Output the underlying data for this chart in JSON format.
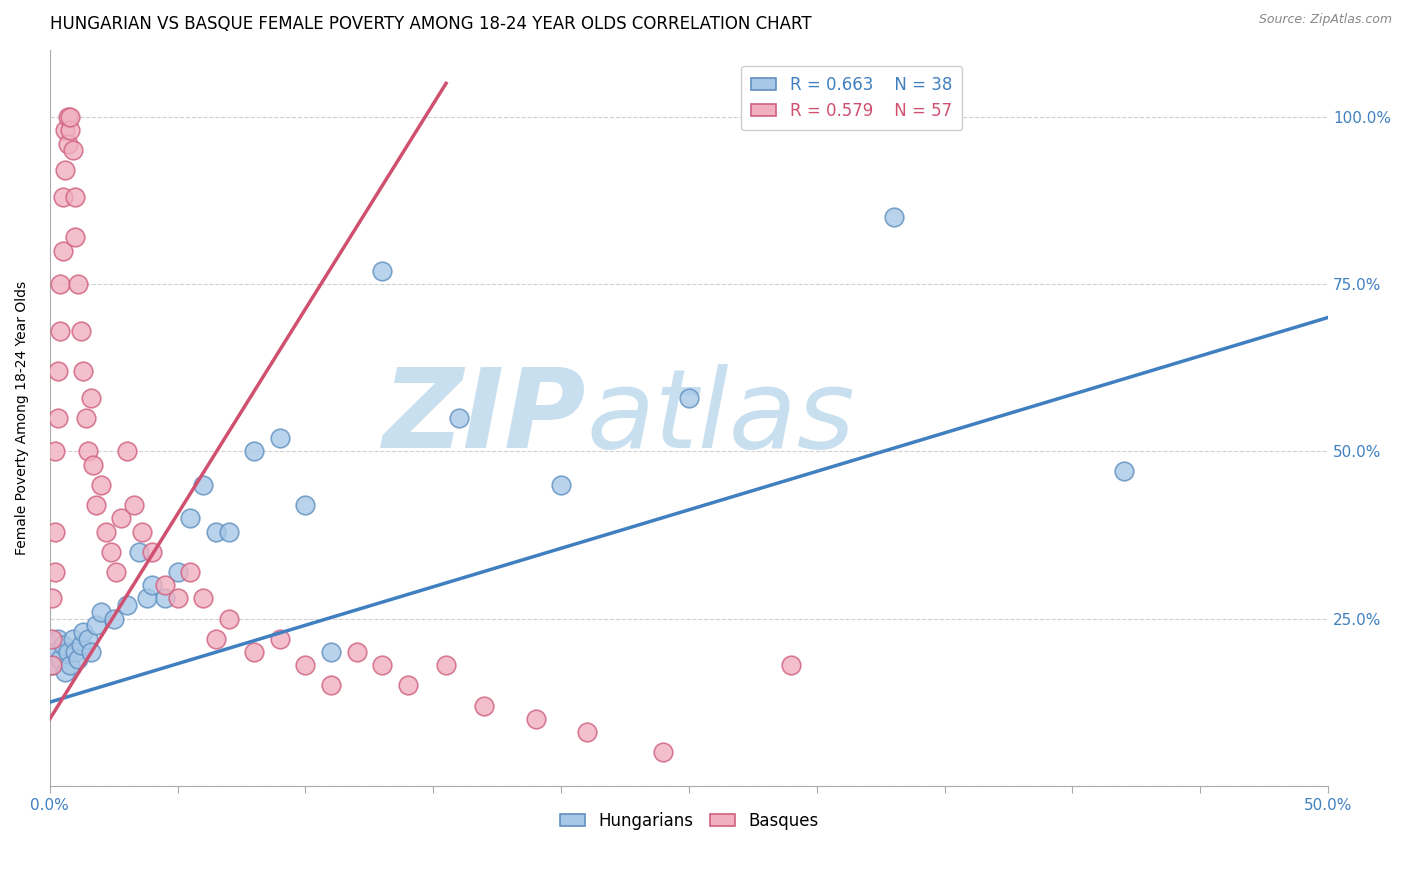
{
  "title": "HUNGARIAN VS BASQUE FEMALE POVERTY AMONG 18-24 YEAR OLDS CORRELATION CHART",
  "source": "Source: ZipAtlas.com",
  "ylabel": "Female Poverty Among 18-24 Year Olds",
  "xlim": [
    0.0,
    0.5
  ],
  "ylim": [
    0.0,
    1.1
  ],
  "blue_R": 0.663,
  "blue_N": 38,
  "pink_R": 0.579,
  "pink_N": 57,
  "blue_color": "#a8c8e8",
  "pink_color": "#f0b0c0",
  "blue_edge_color": "#6090c0",
  "pink_edge_color": "#d06080",
  "blue_line_color": "#4080c0",
  "pink_line_color": "#d05070",
  "watermark_zip": "ZIP",
  "watermark_atlas": "atlas",
  "watermark_color": "#c8dff0",
  "background_color": "#ffffff",
  "title_fontsize": 12,
  "axis_label_fontsize": 10,
  "tick_fontsize": 11,
  "legend_fontsize": 12,
  "blue_line_x0": 0.0,
  "blue_line_y0": 0.125,
  "blue_line_x1": 0.5,
  "blue_line_y1": 0.7,
  "pink_line_x0": 0.0,
  "pink_line_y0": 0.1,
  "pink_line_x1": 0.155,
  "pink_line_y1": 1.05,
  "blue_points_x": [
    0.001,
    0.002,
    0.003,
    0.004,
    0.005,
    0.006,
    0.007,
    0.008,
    0.009,
    0.01,
    0.011,
    0.012,
    0.013,
    0.015,
    0.016,
    0.018,
    0.02,
    0.025,
    0.03,
    0.035,
    0.038,
    0.04,
    0.045,
    0.05,
    0.055,
    0.06,
    0.065,
    0.07,
    0.08,
    0.09,
    0.1,
    0.11,
    0.13,
    0.16,
    0.2,
    0.25,
    0.33,
    0.42
  ],
  "blue_points_y": [
    0.18,
    0.2,
    0.22,
    0.19,
    0.21,
    0.17,
    0.2,
    0.18,
    0.22,
    0.2,
    0.19,
    0.21,
    0.23,
    0.22,
    0.2,
    0.24,
    0.26,
    0.25,
    0.27,
    0.35,
    0.28,
    0.3,
    0.28,
    0.32,
    0.4,
    0.45,
    0.38,
    0.38,
    0.5,
    0.52,
    0.42,
    0.2,
    0.77,
    0.55,
    0.45,
    0.58,
    0.85,
    0.47
  ],
  "pink_points_x": [
    0.001,
    0.001,
    0.001,
    0.002,
    0.002,
    0.002,
    0.003,
    0.003,
    0.004,
    0.004,
    0.005,
    0.005,
    0.006,
    0.006,
    0.007,
    0.007,
    0.008,
    0.008,
    0.009,
    0.01,
    0.01,
    0.011,
    0.012,
    0.013,
    0.014,
    0.015,
    0.016,
    0.017,
    0.018,
    0.02,
    0.022,
    0.024,
    0.026,
    0.028,
    0.03,
    0.033,
    0.036,
    0.04,
    0.045,
    0.05,
    0.055,
    0.06,
    0.065,
    0.07,
    0.08,
    0.09,
    0.1,
    0.11,
    0.12,
    0.13,
    0.14,
    0.155,
    0.17,
    0.19,
    0.21,
    0.24,
    0.29
  ],
  "pink_points_y": [
    0.18,
    0.22,
    0.28,
    0.32,
    0.38,
    0.5,
    0.55,
    0.62,
    0.68,
    0.75,
    0.8,
    0.88,
    0.92,
    0.98,
    0.96,
    1.0,
    0.98,
    1.0,
    0.95,
    0.88,
    0.82,
    0.75,
    0.68,
    0.62,
    0.55,
    0.5,
    0.58,
    0.48,
    0.42,
    0.45,
    0.38,
    0.35,
    0.32,
    0.4,
    0.5,
    0.42,
    0.38,
    0.35,
    0.3,
    0.28,
    0.32,
    0.28,
    0.22,
    0.25,
    0.2,
    0.22,
    0.18,
    0.15,
    0.2,
    0.18,
    0.15,
    0.18,
    0.12,
    0.1,
    0.08,
    0.05,
    0.18
  ]
}
